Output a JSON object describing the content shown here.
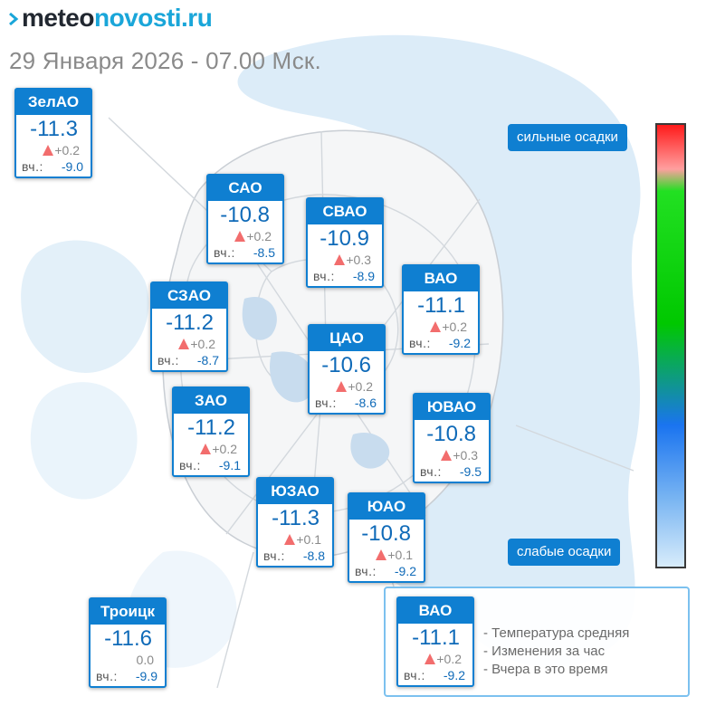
{
  "brand": {
    "part1": "meteo",
    "part2": "novosti.ru"
  },
  "date_line": "29 Января 2026 - 07.00 Мск.",
  "yesterday_label": "вч.:",
  "scale": {
    "top_label": "сильные осадки",
    "bottom_label": "слабые осадки"
  },
  "districts": [
    {
      "id": "zelao",
      "name": "ЗелАО",
      "temp": "-11.3",
      "change": "+0.2",
      "trend": "up",
      "yesterday": "-9.0"
    },
    {
      "id": "sao",
      "name": "САО",
      "temp": "-10.8",
      "change": "+0.2",
      "trend": "up",
      "yesterday": "-8.5"
    },
    {
      "id": "svao",
      "name": "СВАО",
      "temp": "-10.9",
      "change": "+0.3",
      "trend": "up",
      "yesterday": "-8.9"
    },
    {
      "id": "vao",
      "name": "ВАО",
      "temp": "-11.1",
      "change": "+0.2",
      "trend": "up",
      "yesterday": "-9.2"
    },
    {
      "id": "szao",
      "name": "СЗАО",
      "temp": "-11.2",
      "change": "+0.2",
      "trend": "up",
      "yesterday": "-8.7"
    },
    {
      "id": "cao",
      "name": "ЦАО",
      "temp": "-10.6",
      "change": "+0.2",
      "trend": "up",
      "yesterday": "-8.6"
    },
    {
      "id": "zao",
      "name": "ЗАО",
      "temp": "-11.2",
      "change": "+0.2",
      "trend": "up",
      "yesterday": "-9.1"
    },
    {
      "id": "yuvao",
      "name": "ЮВАО",
      "temp": "-10.8",
      "change": "+0.3",
      "trend": "up",
      "yesterday": "-9.5"
    },
    {
      "id": "yuzao",
      "name": "ЮЗАО",
      "temp": "-11.3",
      "change": "+0.1",
      "trend": "up",
      "yesterday": "-8.8"
    },
    {
      "id": "yuao",
      "name": "ЮАО",
      "temp": "-10.8",
      "change": "+0.1",
      "trend": "up",
      "yesterday": "-9.2"
    },
    {
      "id": "troitsk",
      "name": "Троицк",
      "temp": "-11.6",
      "change": "0.0",
      "trend": "none",
      "yesterday": "-9.9"
    }
  ],
  "legend": {
    "example": {
      "name": "ВАО",
      "temp": "-11.1",
      "change": "+0.2",
      "trend": "up",
      "yesterday": "-9.2"
    },
    "lines": [
      "- Температура средняя",
      "- Изменения за час",
      "- Вчера в это время"
    ]
  },
  "colors": {
    "accent": "#0f7fd1",
    "trend_up": "#f26d6d",
    "brand_teal": "#1aa6d9"
  }
}
